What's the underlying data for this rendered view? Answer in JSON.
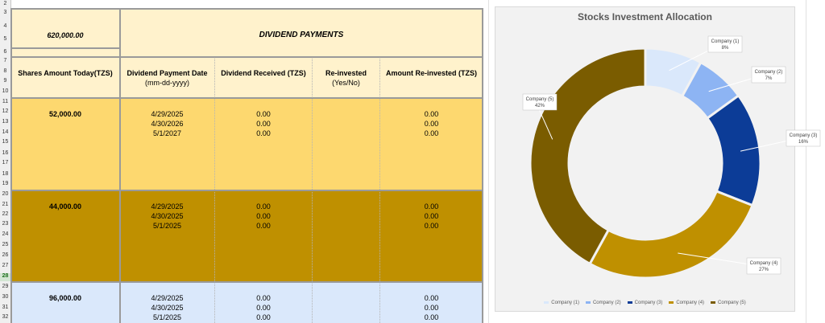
{
  "sheet": {
    "row_numbers": [
      "2",
      "3",
      "4",
      "5",
      "6",
      "7",
      "8",
      "9",
      "10",
      "11",
      "12",
      "13",
      "14",
      "15",
      "16",
      "17",
      "18",
      "19",
      "20",
      "21",
      "22",
      "23",
      "24",
      "25",
      "26",
      "27",
      "28",
      "29",
      "30",
      "31",
      "32"
    ],
    "selected_row": "28"
  },
  "header": {
    "total_amount": "620,000.00",
    "dividend_title": "DIVIDEND PAYMENTS",
    "columns": {
      "shares": "Shares Amount Today(TZS)",
      "payment_date": "Dividend Payment Date",
      "payment_date_sub": "(mm-dd-yyyy)",
      "received": "Dividend Received (TZS)",
      "reinvested": "Re-invested",
      "reinvested_sub": "(Yes/No)",
      "amount_reinvested": "Amount Re-invested (TZS)"
    }
  },
  "blocks": [
    {
      "shares": "52,000.00",
      "color": "#fdd86f",
      "dates": [
        "4/29/2025",
        "4/30/2026",
        "5/1/2027"
      ],
      "received": [
        "0.00",
        "0.00",
        "0.00"
      ],
      "reinvested_amt": [
        "0.00",
        "0.00",
        "0.00"
      ]
    },
    {
      "shares": "44,000.00",
      "color": "#bf9000",
      "dates": [
        "4/29/2025",
        "4/30/2025",
        "5/1/2025"
      ],
      "received": [
        "0.00",
        "0.00",
        "0.00"
      ],
      "reinvested_amt": [
        "0.00",
        "0.00",
        "0.00"
      ]
    },
    {
      "shares": "96,000.00",
      "color": "#dae8fb",
      "dates": [
        "4/29/2025",
        "4/30/2025",
        "5/1/2025"
      ],
      "received": [
        "0.00",
        "0.00",
        "0.00"
      ],
      "reinvested_amt": [
        "0.00",
        "0.00",
        "0.00"
      ]
    }
  ],
  "chart_data": {
    "type": "pie",
    "title": "Stocks Investment Allocation",
    "categories": [
      "Company (1)",
      "Company (2)",
      "Company (3)",
      "Company (4)",
      "Company (5)"
    ],
    "values": [
      8,
      7,
      16,
      27,
      42
    ],
    "labels": [
      "8%",
      "7%",
      "16%",
      "27%",
      "42%"
    ],
    "colors": [
      "#dae8fb",
      "#8db4f3",
      "#0c3c97",
      "#bf9000",
      "#7a5c00"
    ],
    "donut": true,
    "legend": "bottom"
  }
}
